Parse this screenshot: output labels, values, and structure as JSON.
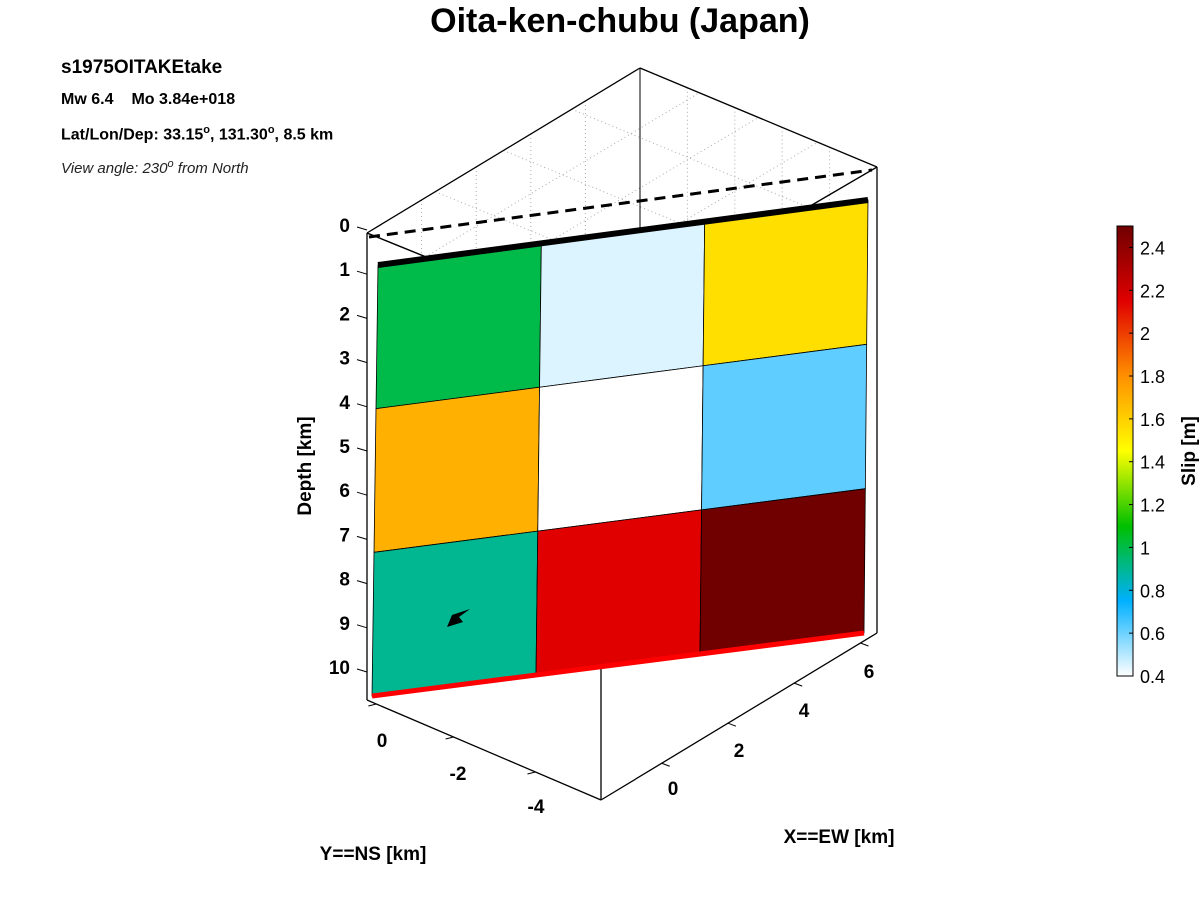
{
  "title": "Oita-ken-chubu (Japan)",
  "event": {
    "id": "s1975OITAKEtake",
    "mw_label": "Mw 6.4",
    "mo_label": "Mo 3.84e+018",
    "location_prefix": "Lat/Lon/Dep: 33.15",
    "location_mid": ", 131.30",
    "location_suffix": ", 8.5 km",
    "degree_mark": "o",
    "view_prefix": "View angle: 230",
    "view_suffix": " from North"
  },
  "chart_data": {
    "type": "heatmap",
    "title": "Oita-ken-chubu (Japan)",
    "zlabel": "Depth [km]",
    "ylabel": "Y==NS [km]",
    "xlabel": "X==EW [km]",
    "colorbar_label": "Slip [m]",
    "colorbar_range": [
      0.4,
      2.5
    ],
    "colorbar_ticks": [
      "0.4",
      "0.6",
      "0.8",
      "1",
      "1.2",
      "1.4",
      "1.6",
      "1.8",
      "2",
      "2.2",
      "2.4"
    ],
    "depth_ticks": [
      "0",
      "1",
      "2",
      "3",
      "4",
      "5",
      "6",
      "7",
      "8",
      "9",
      "10"
    ],
    "ns_ticks": [
      "0",
      "-2",
      "-4"
    ],
    "ew_ticks": [
      "0",
      "2",
      "4",
      "6"
    ],
    "fault_grid": {
      "rows": 3,
      "cols": 3,
      "slip": [
        [
          1.0,
          0.45,
          1.55
        ],
        [
          1.7,
          0.4,
          0.62
        ],
        [
          0.9,
          2.15,
          2.5
        ]
      ]
    },
    "view_azimuth_deg": 230,
    "grid": true
  },
  "colors": {
    "top_edge": "#000000",
    "bottom_edge": "#ff0000",
    "colormap": [
      "#ffffff",
      "#00b0ff",
      "#00c000",
      "#ffff00",
      "#ff9000",
      "#e00000",
      "#700000"
    ]
  }
}
